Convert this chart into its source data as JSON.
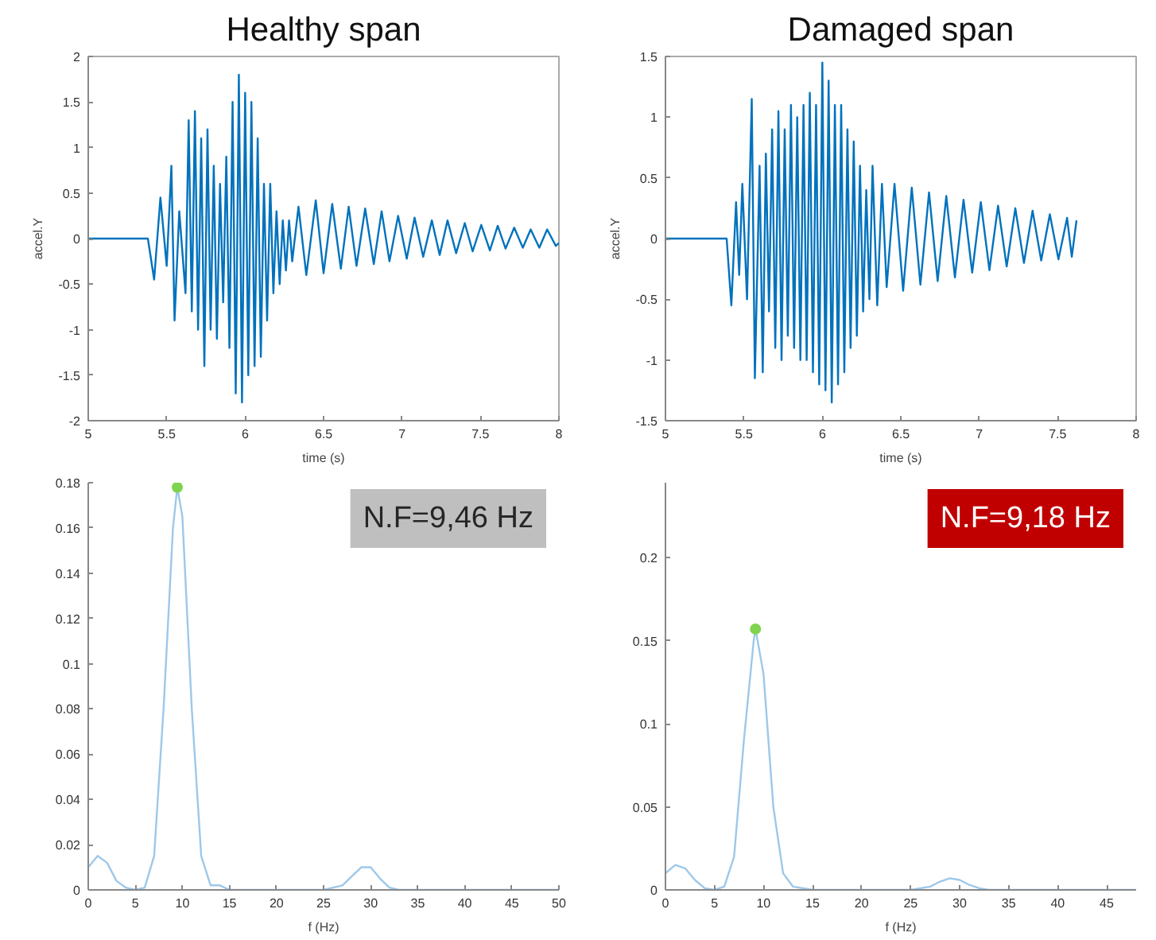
{
  "chart_data": [
    {
      "type": "line",
      "title": "Healthy span",
      "xlabel": "time (s)",
      "ylabel": "accel.Y",
      "xlim": [
        5,
        8
      ],
      "ylim": [
        -2,
        2
      ],
      "xticks": [
        5,
        5.5,
        6,
        6.5,
        7,
        7.5,
        8
      ],
      "yticks": [
        -2,
        -1.5,
        -1,
        -0.5,
        0,
        0.5,
        1,
        1.5,
        2
      ],
      "grid": false,
      "series": [
        {
          "color": "#0072bd",
          "x": [
            5,
            5.38,
            5.42,
            5.46,
            5.5,
            5.53,
            5.55,
            5.58,
            5.62,
            5.64,
            5.66,
            5.68,
            5.7,
            5.72,
            5.74,
            5.76,
            5.78,
            5.8,
            5.82,
            5.84,
            5.86,
            5.88,
            5.9,
            5.92,
            5.94,
            5.96,
            5.98,
            6.0,
            6.02,
            6.04,
            6.06,
            6.08,
            6.1,
            6.12,
            6.14,
            6.16,
            6.18,
            6.2,
            6.22,
            6.24,
            6.26,
            6.28,
            6.3,
            6.34,
            6.39,
            6.45,
            6.5,
            6.555,
            6.61,
            6.66,
            6.71,
            6.765,
            6.82,
            6.87,
            6.92,
            6.975,
            7.03,
            7.08,
            7.135,
            7.19,
            7.24,
            7.29,
            7.345,
            7.4,
            7.45,
            7.505,
            7.56,
            7.61,
            7.66,
            7.715,
            7.77,
            7.82,
            7.875,
            7.925,
            7.98,
            8
          ],
          "values": [
            0,
            0,
            -0.45,
            0.45,
            -0.3,
            0.8,
            -0.9,
            0.3,
            -0.6,
            1.3,
            -0.8,
            1.4,
            -1.0,
            1.1,
            -1.4,
            1.2,
            -1.0,
            0.8,
            -1.1,
            0.6,
            -0.7,
            0.9,
            -1.2,
            1.5,
            -1.7,
            1.8,
            -1.8,
            1.6,
            -1.5,
            1.5,
            -1.4,
            1.1,
            -1.3,
            0.6,
            -0.9,
            0.6,
            -0.6,
            0.3,
            -0.5,
            0.2,
            -0.35,
            0.2,
            -0.25,
            0.35,
            -0.4,
            0.42,
            -0.38,
            0.38,
            -0.33,
            0.35,
            -0.3,
            0.33,
            -0.28,
            0.3,
            -0.25,
            0.25,
            -0.22,
            0.23,
            -0.2,
            0.2,
            -0.18,
            0.2,
            -0.16,
            0.17,
            -0.14,
            0.15,
            -0.13,
            0.14,
            -0.11,
            0.12,
            -0.1,
            0.1,
            -0.1,
            0.1,
            -0.08,
            -0.05
          ]
        }
      ]
    },
    {
      "type": "line",
      "title": "Damaged span",
      "xlabel": "time (s)",
      "ylabel": "accel.Y",
      "xlim": [
        5,
        8
      ],
      "ylim": [
        -1.5,
        1.5
      ],
      "xticks": [
        5,
        5.5,
        6,
        6.5,
        7,
        7.5,
        8
      ],
      "yticks": [
        -1.5,
        -1,
        -0.5,
        0,
        0.5,
        1,
        1.5
      ],
      "grid": false,
      "series": [
        {
          "color": "#0072bd",
          "x": [
            5,
            5.39,
            5.42,
            5.45,
            5.47,
            5.49,
            5.52,
            5.55,
            5.57,
            5.6,
            5.62,
            5.64,
            5.66,
            5.68,
            5.7,
            5.72,
            5.74,
            5.76,
            5.78,
            5.8,
            5.82,
            5.84,
            5.86,
            5.88,
            5.9,
            5.92,
            5.94,
            5.96,
            5.98,
            6.0,
            6.02,
            6.04,
            6.06,
            6.08,
            6.1,
            6.12,
            6.14,
            6.16,
            6.18,
            6.2,
            6.22,
            6.24,
            6.26,
            6.28,
            6.3,
            6.32,
            6.35,
            6.38,
            6.41,
            6.46,
            6.515,
            6.57,
            6.625,
            6.68,
            6.735,
            6.79,
            6.845,
            6.9,
            6.955,
            7.01,
            7.065,
            7.12,
            7.175,
            7.23,
            7.285,
            7.34,
            7.395,
            7.45,
            7.505,
            7.56,
            7.59,
            7.62
          ],
          "values": [
            0,
            0,
            -0.55,
            0.3,
            -0.3,
            0.45,
            -0.5,
            1.15,
            -1.15,
            0.6,
            -1.1,
            0.7,
            -0.6,
            0.9,
            -0.9,
            1.05,
            -1.0,
            0.9,
            -0.8,
            1.1,
            -0.9,
            1.0,
            -1.0,
            1.1,
            -1.0,
            1.2,
            -1.1,
            1.1,
            -1.2,
            1.45,
            -1.25,
            1.3,
            -1.35,
            1.1,
            -1.2,
            1.1,
            -1.1,
            0.9,
            -0.9,
            0.8,
            -0.8,
            0.6,
            -0.6,
            0.4,
            -0.5,
            0.6,
            -0.55,
            0.45,
            -0.4,
            0.45,
            -0.43,
            0.42,
            -0.38,
            0.38,
            -0.35,
            0.35,
            -0.32,
            0.32,
            -0.28,
            0.3,
            -0.26,
            0.27,
            -0.23,
            0.25,
            -0.2,
            0.23,
            -0.18,
            0.2,
            -0.17,
            0.17,
            -0.15,
            0.15
          ]
        }
      ]
    },
    {
      "type": "line",
      "xlabel": "f (Hz)",
      "xlim": [
        0,
        50
      ],
      "ylim": [
        0,
        0.18
      ],
      "xticks": [
        0,
        5,
        10,
        15,
        20,
        25,
        30,
        35,
        40,
        45,
        50
      ],
      "yticks": [
        0,
        0.02,
        0.04,
        0.06,
        0.08,
        0.1,
        0.12,
        0.14,
        0.16,
        0.18
      ],
      "grid": false,
      "annotations": [
        "N.F=9,46 Hz"
      ],
      "series": [
        {
          "color": "#9dc8ea",
          "x": [
            0,
            1,
            2,
            3,
            4,
            5,
            6,
            7,
            8,
            9,
            9.46,
            10,
            11,
            12,
            13,
            14,
            15,
            20,
            25,
            27,
            28,
            29,
            30,
            31,
            32,
            33,
            40,
            50
          ],
          "values": [
            0.01,
            0.015,
            0.012,
            0.004,
            0.001,
            0,
            0.001,
            0.015,
            0.08,
            0.16,
            0.178,
            0.165,
            0.08,
            0.015,
            0.002,
            0.002,
            0,
            0,
            0,
            0.002,
            0.006,
            0.01,
            0.01,
            0.005,
            0.001,
            0,
            0,
            0
          ]
        },
        {
          "type": "scatter",
          "marker": "circle",
          "color": "#7fd34e",
          "x": [
            9.46
          ],
          "values": [
            0.178
          ]
        }
      ]
    },
    {
      "type": "line",
      "xlabel": "f (Hz)",
      "xlim": [
        0,
        48
      ],
      "ylim": [
        0,
        0.245
      ],
      "xticks": [
        0,
        5,
        10,
        15,
        20,
        25,
        30,
        35,
        40,
        45
      ],
      "yticks": [
        0,
        0.05,
        0.1,
        0.15,
        0.2
      ],
      "grid": false,
      "annotations": [
        "N.F=9,18 Hz"
      ],
      "series": [
        {
          "color": "#9dc8ea",
          "x": [
            0,
            1,
            2,
            3,
            4,
            5,
            6,
            7,
            8,
            9,
            9.18,
            10,
            11,
            12,
            13,
            15,
            25,
            27,
            28,
            29,
            30,
            31,
            32,
            33,
            48
          ],
          "values": [
            0.01,
            0.015,
            0.013,
            0.006,
            0.001,
            0,
            0.002,
            0.02,
            0.09,
            0.15,
            0.157,
            0.13,
            0.05,
            0.01,
            0.002,
            0,
            0,
            0.002,
            0.005,
            0.007,
            0.006,
            0.003,
            0.001,
            0,
            0
          ]
        },
        {
          "type": "scatter",
          "marker": "circle",
          "color": "#7fd34e",
          "x": [
            9.18
          ],
          "values": [
            0.157
          ]
        }
      ]
    }
  ]
}
